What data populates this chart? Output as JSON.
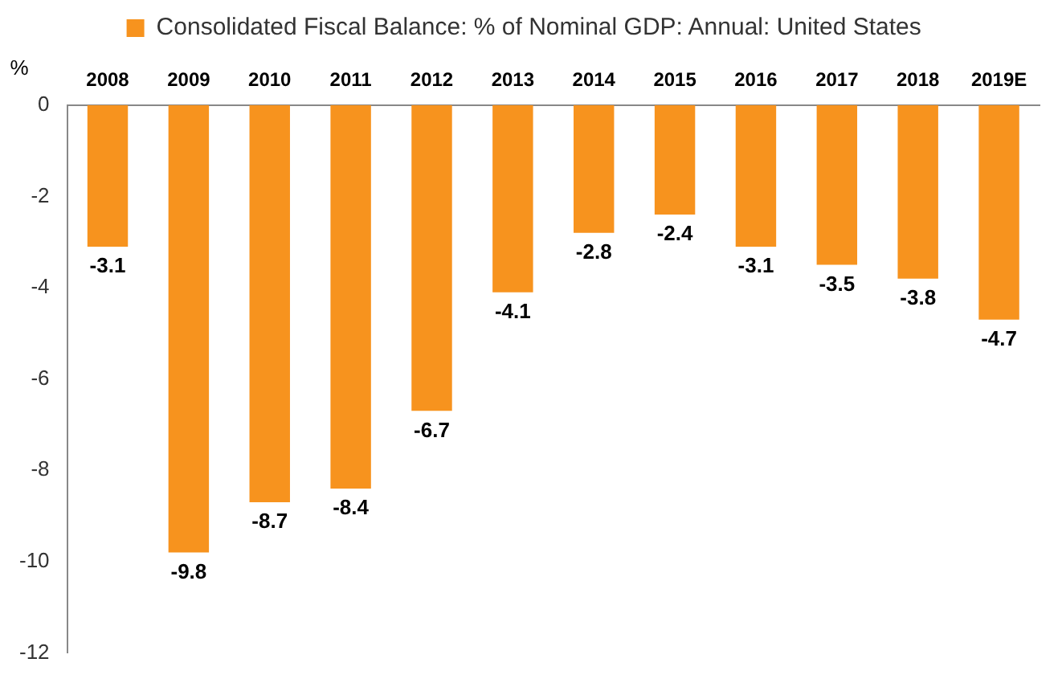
{
  "chart_data": {
    "type": "bar",
    "ylabel": "%",
    "categories": [
      "2008",
      "2009",
      "2010",
      "2011",
      "2012",
      "2013",
      "2014",
      "2015",
      "2016",
      "2017",
      "2018",
      "2019E"
    ],
    "series": [
      {
        "name": "Consolidated Fiscal Balance: % of Nominal GDP: Annual: United States",
        "color": "#f7931e",
        "values": [
          -3.1,
          -9.8,
          -8.7,
          -8.4,
          -6.7,
          -4.1,
          -2.8,
          -2.4,
          -3.1,
          -3.5,
          -3.8,
          -4.7
        ]
      }
    ],
    "ylim": [
      -12,
      0
    ],
    "yticks": [
      -12,
      -10,
      -8,
      -6,
      -4,
      -2,
      0
    ],
    "grid": false,
    "legend": "top",
    "data_labels": true
  }
}
